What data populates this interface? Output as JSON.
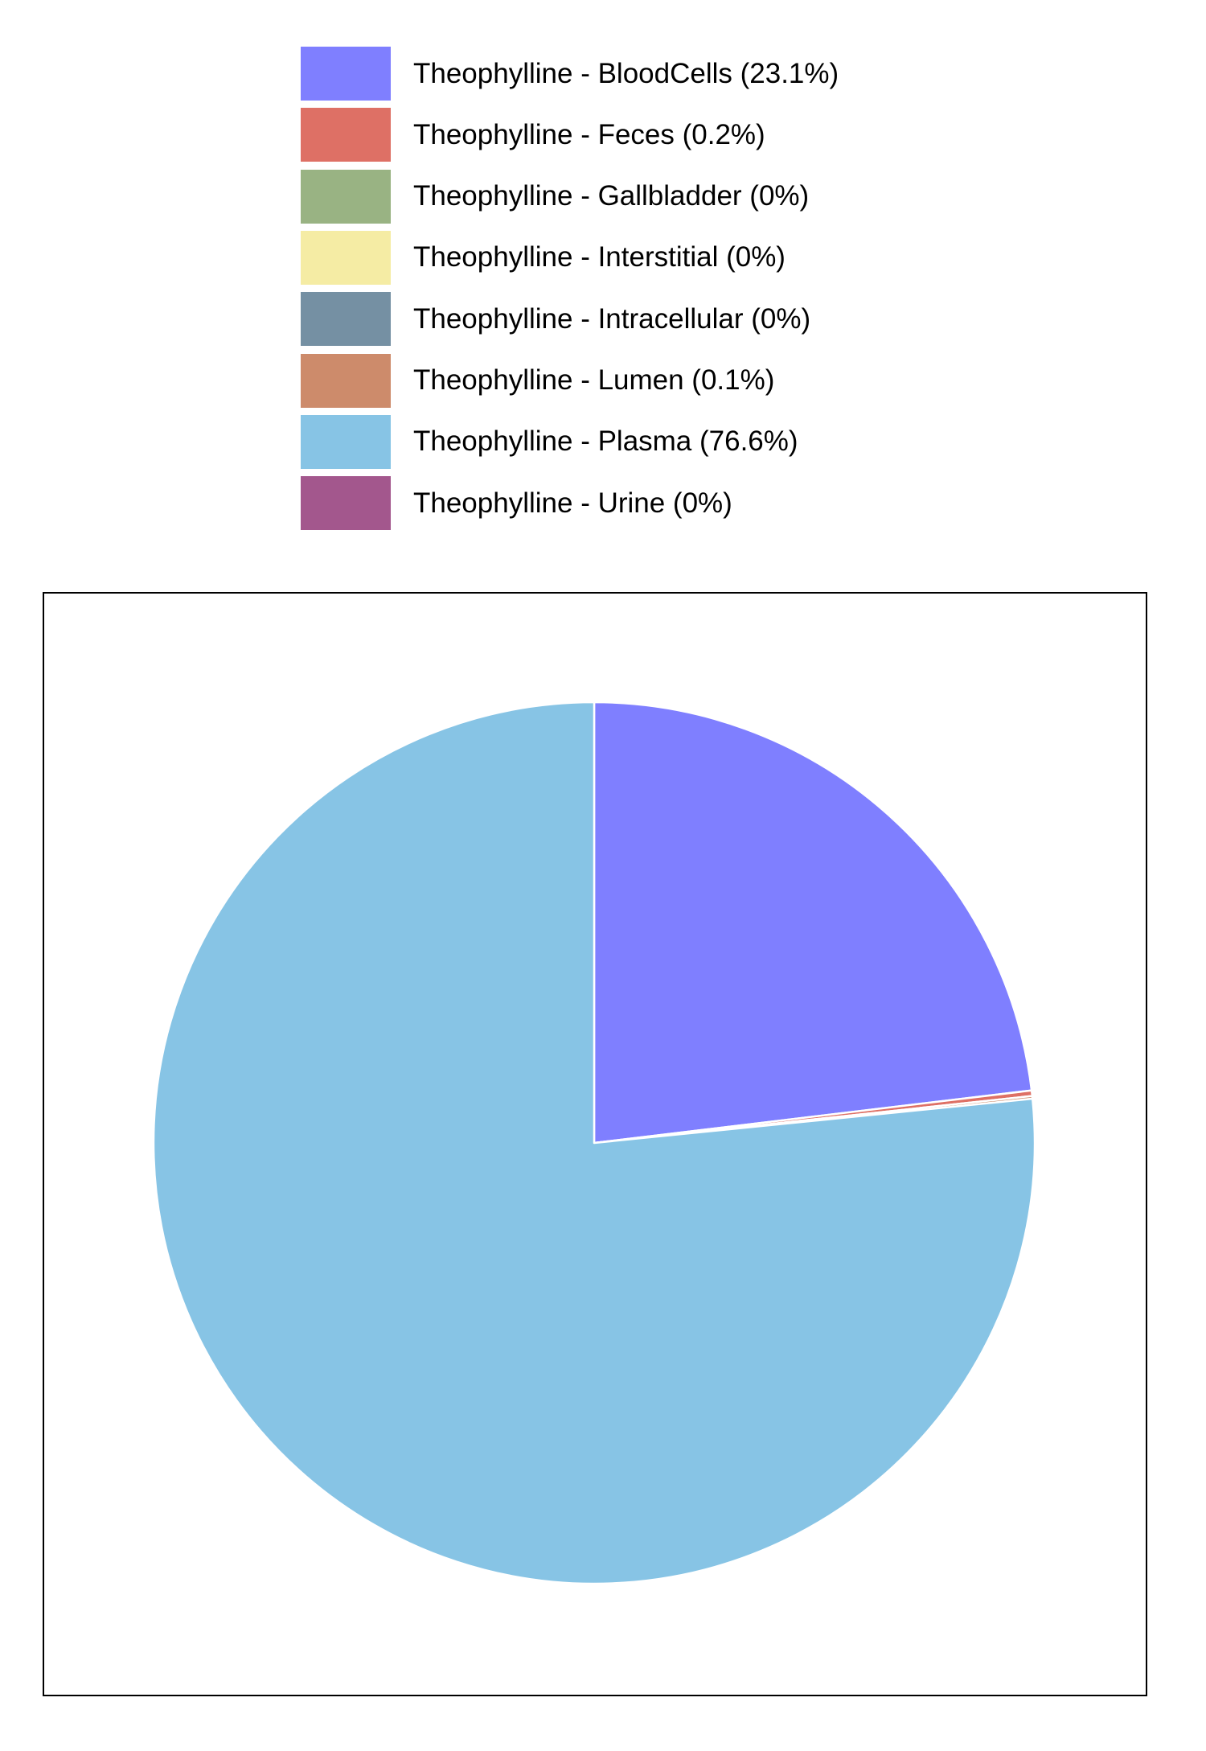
{
  "chart_data": {
    "type": "pie",
    "title": "",
    "legend_position": "top",
    "slices": [
      {
        "label": "Theophylline - BloodCells (23.1%)",
        "value": 23.1,
        "color": "#7f7fff"
      },
      {
        "label": "Theophylline - Feces (0.2%)",
        "value": 0.2,
        "color": "#de7065"
      },
      {
        "label": "Theophylline - Gallbladder (0%)",
        "value": 0,
        "color": "#99b383"
      },
      {
        "label": "Theophylline - Interstitial (0%)",
        "value": 0,
        "color": "#f5eca4"
      },
      {
        "label": "Theophylline - Intracellular (0%)",
        "value": 0,
        "color": "#7590a3"
      },
      {
        "label": "Theophylline - Lumen (0.1%)",
        "value": 0.1,
        "color": "#cd8b6b"
      },
      {
        "label": "Theophylline - Plasma (76.6%)",
        "value": 76.6,
        "color": "#87c4e5"
      },
      {
        "label": "Theophylline - Urine (0%)",
        "value": 0,
        "color": "#a3578d"
      }
    ]
  }
}
